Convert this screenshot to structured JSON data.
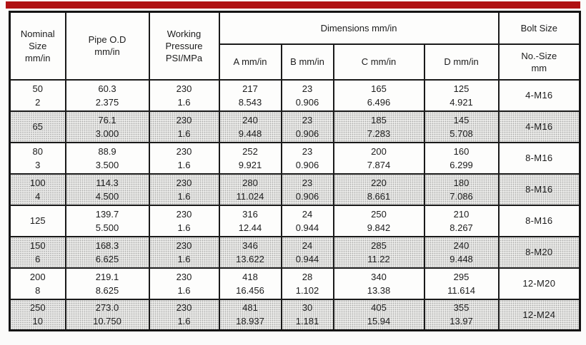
{
  "page": {
    "background": "#fbfbfa",
    "accent_bar_color": "#b01112",
    "text_color": "#1c1c1c",
    "border_color": "#1a1a1a",
    "shaded_row_color": "#ebebe9"
  },
  "table": {
    "header": {
      "nominal": [
        "Nominal",
        "Size",
        "mm/in"
      ],
      "pipe_od": [
        "Pipe O.D",
        "mm/in"
      ],
      "working_pressure": [
        "Working",
        "Pressure",
        "PSI/MPa"
      ],
      "dimensions": "Dimensions mm/in",
      "dim_a": "A mm/in",
      "dim_b": "B mm/in",
      "dim_c": "C mm/in",
      "dim_d": "D mm/in",
      "bolt_size": "Bolt Size",
      "bolt_sub": [
        "No.-Size",
        "mm"
      ]
    },
    "rows": [
      {
        "nominal": [
          "50",
          "2"
        ],
        "pipe_od": [
          "60.3",
          "2.375"
        ],
        "pressure": [
          "230",
          "1.6"
        ],
        "a": [
          "217",
          "8.543"
        ],
        "b": [
          "23",
          "0.906"
        ],
        "c": [
          "165",
          "6.496"
        ],
        "d": [
          "125",
          "4.921"
        ],
        "bolt": "4-M16",
        "shaded": false
      },
      {
        "nominal": [
          "65"
        ],
        "pipe_od": [
          "76.1",
          "3.000"
        ],
        "pressure": [
          "230",
          "1.6"
        ],
        "a": [
          "240",
          "9.448"
        ],
        "b": [
          "23",
          "0.906"
        ],
        "c": [
          "185",
          "7.283"
        ],
        "d": [
          "145",
          "5.708"
        ],
        "bolt": "4-M16",
        "shaded": true
      },
      {
        "nominal": [
          "80",
          "3"
        ],
        "pipe_od": [
          "88.9",
          "3.500"
        ],
        "pressure": [
          "230",
          "1.6"
        ],
        "a": [
          "252",
          "9.921"
        ],
        "b": [
          "23",
          "0.906"
        ],
        "c": [
          "200",
          "7.874"
        ],
        "d": [
          "160",
          "6.299"
        ],
        "bolt": "8-M16",
        "shaded": false
      },
      {
        "nominal": [
          "100",
          "4"
        ],
        "pipe_od": [
          "114.3",
          "4.500"
        ],
        "pressure": [
          "230",
          "1.6"
        ],
        "a": [
          "280",
          "11.024"
        ],
        "b": [
          "23",
          "0.906"
        ],
        "c": [
          "220",
          "8.661"
        ],
        "d": [
          "180",
          "7.086"
        ],
        "bolt": "8-M16",
        "shaded": true
      },
      {
        "nominal": [
          "125"
        ],
        "pipe_od": [
          "139.7",
          "5.500"
        ],
        "pressure": [
          "230",
          "1.6"
        ],
        "a": [
          "316",
          "12.44"
        ],
        "b": [
          "24",
          "0.944"
        ],
        "c": [
          "250",
          "9.842"
        ],
        "d": [
          "210",
          "8.267"
        ],
        "bolt": "8-M16",
        "shaded": false
      },
      {
        "nominal": [
          "150",
          "6"
        ],
        "pipe_od": [
          "168.3",
          "6.625"
        ],
        "pressure": [
          "230",
          "1.6"
        ],
        "a": [
          "346",
          "13.622"
        ],
        "b": [
          "24",
          "0.944"
        ],
        "c": [
          "285",
          "11.22"
        ],
        "d": [
          "240",
          "9.448"
        ],
        "bolt": "8-M20",
        "shaded": true
      },
      {
        "nominal": [
          "200",
          "8"
        ],
        "pipe_od": [
          "219.1",
          "8.625"
        ],
        "pressure": [
          "230",
          "1.6"
        ],
        "a": [
          "418",
          "16.456"
        ],
        "b": [
          "28",
          "1.102"
        ],
        "c": [
          "340",
          "13.38"
        ],
        "d": [
          "295",
          "11.614"
        ],
        "bolt": "12-M20",
        "shaded": false
      },
      {
        "nominal": [
          "250",
          "10"
        ],
        "pipe_od": [
          "273.0",
          "10.750"
        ],
        "pressure": [
          "230",
          "1.6"
        ],
        "a": [
          "481",
          "18.937"
        ],
        "b": [
          "30",
          "1.181"
        ],
        "c": [
          "405",
          "15.94"
        ],
        "d": [
          "355",
          "13.97"
        ],
        "bolt": "12-M24",
        "shaded": true
      }
    ]
  }
}
